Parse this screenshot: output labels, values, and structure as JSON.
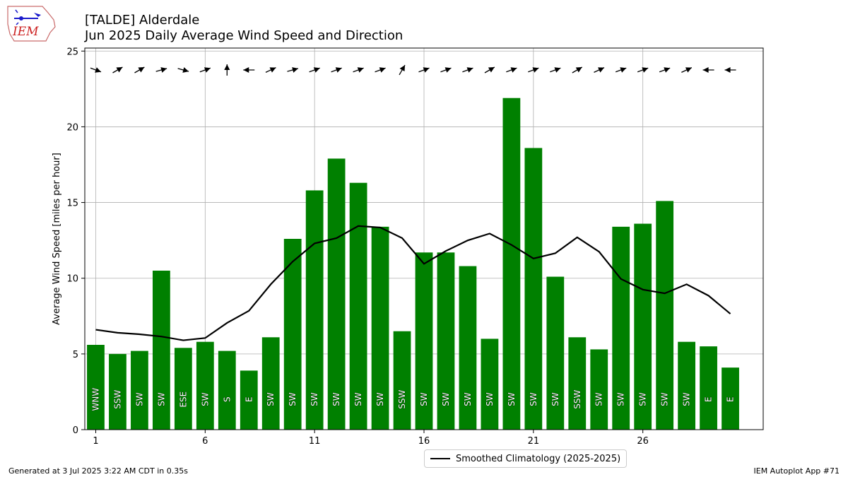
{
  "header": {
    "logo_text": "IEM",
    "title_line1": "[TALDE] Alderdale",
    "title_line2": "Jun 2025 Daily Average Wind Speed and Direction"
  },
  "footer": {
    "left": "Generated at 3 Jul 2025 3:22 AM CDT in 0.35s",
    "right": "IEM Autoplot App #71"
  },
  "legend": {
    "climatology_label": "Smoothed Climatology (2025-2025)"
  },
  "colors": {
    "bar": "#008000",
    "climatology_line": "#000000",
    "grid": "#b0b0b0"
  },
  "chart_data": {
    "type": "bar",
    "ylabel": "Average Wind Speed [miles per hour]",
    "xlabel": "",
    "xlim": [
      0.5,
      31.5
    ],
    "ylim": [
      0,
      25.2
    ],
    "x_ticks": [
      1,
      6,
      11,
      16,
      21,
      26
    ],
    "y_ticks": [
      0,
      5,
      10,
      15,
      20,
      25
    ],
    "grid": true,
    "legend_position": "bottom-center",
    "days": [
      1,
      2,
      3,
      4,
      5,
      6,
      7,
      8,
      9,
      10,
      11,
      12,
      13,
      14,
      15,
      16,
      17,
      18,
      19,
      20,
      21,
      22,
      23,
      24,
      25,
      26,
      27,
      28,
      29,
      30
    ],
    "avg_speed": [
      5.6,
      5.0,
      5.2,
      10.5,
      5.4,
      5.8,
      5.2,
      3.9,
      6.1,
      12.6,
      15.8,
      17.9,
      16.3,
      13.4,
      6.5,
      11.7,
      11.7,
      10.8,
      6.0,
      21.9,
      18.6,
      10.1,
      6.1,
      5.3,
      13.4,
      13.6,
      15.1,
      5.8,
      5.5,
      4.1
    ],
    "direction_text": [
      "WNW",
      "SSW",
      "SW",
      "SW",
      "ESE",
      "SW",
      "S",
      "E",
      "SW",
      "SW",
      "SW",
      "SW",
      "SW",
      "SW",
      "SSW",
      "SW",
      "SW",
      "SW",
      "SW",
      "SW",
      "SW",
      "SW",
      "SSW",
      "SW",
      "SW",
      "SW",
      "SW",
      "SW",
      "E",
      "E"
    ],
    "arrow_angle_deg": [
      -20,
      30,
      30,
      15,
      -15,
      20,
      90,
      180,
      25,
      15,
      20,
      20,
      20,
      20,
      60,
      20,
      20,
      20,
      30,
      20,
      20,
      20,
      30,
      25,
      20,
      20,
      20,
      25,
      180,
      180
    ],
    "climatology": [
      6.6,
      6.4,
      6.3,
      6.15,
      5.9,
      6.05,
      7.05,
      7.85,
      9.6,
      11.1,
      12.3,
      12.65,
      13.45,
      13.35,
      12.65,
      10.95,
      11.8,
      12.5,
      12.95,
      12.2,
      11.3,
      11.65,
      12.7,
      11.75,
      9.95,
      9.25,
      9.0,
      9.6,
      8.85,
      7.65
    ]
  }
}
